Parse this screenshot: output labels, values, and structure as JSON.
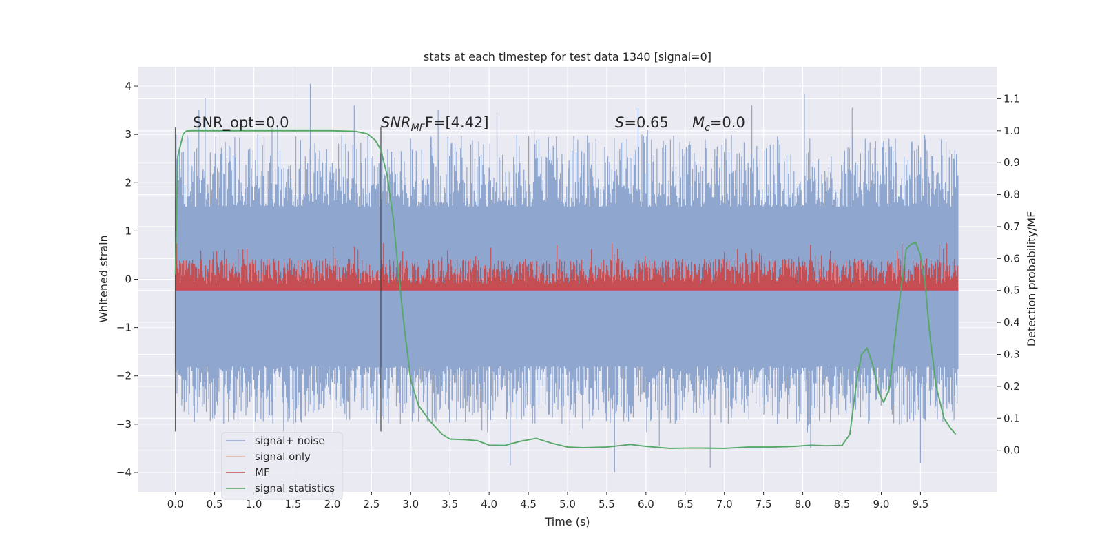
{
  "chart_data": {
    "type": "line",
    "title": "stats at each timestep for test data 1340 [signal=0]",
    "xlabel": "Time (s)",
    "ylabel_left": "Whitened strain",
    "ylabel_right": "Detection probability/MF",
    "xlim": [
      -0.48,
      10.48
    ],
    "ylim_left": [
      -4.4,
      4.4
    ],
    "ylim_right": [
      -0.13,
      1.2
    ],
    "x_ticks": [
      0.0,
      0.5,
      1.0,
      1.5,
      2.0,
      2.5,
      3.0,
      3.5,
      4.0,
      4.5,
      5.0,
      5.5,
      6.0,
      6.5,
      7.0,
      7.5,
      8.0,
      8.5,
      9.0,
      9.5
    ],
    "x_tick_labels": [
      "0.0",
      "0.5",
      "1.0",
      "1.5",
      "2.0",
      "2.5",
      "3.0",
      "3.5",
      "4.0",
      "4.5",
      "5.0",
      "5.5",
      "6.0",
      "6.5",
      "7.0",
      "7.5",
      "8.0",
      "8.5",
      "9.0",
      "9.5"
    ],
    "y_left_ticks": [
      -4,
      -3,
      -2,
      -1,
      0,
      1,
      2,
      3,
      4
    ],
    "y_left_tick_labels": [
      "−4",
      "−3",
      "−2",
      "−1",
      "0",
      "1",
      "2",
      "3",
      "4"
    ],
    "y_right_ticks": [
      0.0,
      0.1,
      0.2,
      0.3,
      0.4,
      0.5,
      0.6,
      0.7,
      0.8,
      0.9,
      1.0,
      1.1
    ],
    "y_right_tick_labels": [
      "0.0",
      "0.1",
      "0.2",
      "0.3",
      "0.4",
      "0.5",
      "0.6",
      "0.7",
      "0.8",
      "0.9",
      "1.0",
      "1.1"
    ],
    "annotations": {
      "snr_opt": "SNR_opt=0.0",
      "snr_mf_main": "SNR",
      "snr_mf_sub": "MF",
      "snr_mf_rest": "F=[4.42]",
      "s_main": "S",
      "s_rest": "=0.65",
      "mc_main": "M",
      "mc_sub": "c",
      "mc_rest": "=0.0"
    },
    "vlines": [
      0.0,
      2.62
    ],
    "vline_range_left": [
      -3.15,
      3.15
    ],
    "legend": {
      "position": "lower-left",
      "entries": [
        {
          "label": "signal+ noise",
          "color": "#8fa6cf"
        },
        {
          "label": "signal only",
          "color": "#e8ae95"
        },
        {
          "label": "MF",
          "color": "#c44e52"
        },
        {
          "label": "signal statistics",
          "color": "#55a868"
        }
      ]
    },
    "series": [
      {
        "name": "signal+ noise",
        "axis": "left",
        "color": "#8fa6cf",
        "x_range": [
          0.0,
          9.98
        ],
        "envelope": {
          "upper_typical": [
            1.5,
            3.0
          ],
          "lower_typical": [
            -1.8,
            -3.0
          ]
        },
        "spikes": [
          {
            "x": 0.3,
            "y": 3.5
          },
          {
            "x": 0.38,
            "y": 3.75
          },
          {
            "x": 1.72,
            "y": 4.05
          },
          {
            "x": 2.28,
            "y": 3.6
          },
          {
            "x": 3.35,
            "y": 3.5
          },
          {
            "x": 4.1,
            "y": 3.45
          },
          {
            "x": 5.9,
            "y": 3.55
          },
          {
            "x": 7.35,
            "y": 3.6
          },
          {
            "x": 8.02,
            "y": 3.85
          },
          {
            "x": 8.63,
            "y": 3.55
          },
          {
            "x": 4.27,
            "y": -3.85
          },
          {
            "x": 5.6,
            "y": -4.0
          },
          {
            "x": 6.82,
            "y": -3.9
          },
          {
            "x": 9.5,
            "y": -3.8
          },
          {
            "x": 1.38,
            "y": -3.15
          },
          {
            "x": 6.17,
            "y": -3.45
          },
          {
            "x": 8.1,
            "y": -3.5
          }
        ]
      },
      {
        "name": "signal only",
        "axis": "left",
        "color": "#e8ae95",
        "x": [
          0.0,
          9.98
        ],
        "y": [
          0.0,
          0.0
        ]
      },
      {
        "name": "MF",
        "axis": "right",
        "color": "#c44e52",
        "x_range": [
          0.0,
          9.98
        ],
        "baseline": 0.5,
        "typical_range": [
          0.52,
          0.6
        ],
        "max": 0.65
      },
      {
        "name": "signal statistics",
        "axis": "right",
        "color": "#55a868",
        "x": [
          0.0,
          0.03,
          0.06,
          0.1,
          0.14,
          0.2,
          0.3,
          0.5,
          1.0,
          1.5,
          2.0,
          2.3,
          2.45,
          2.55,
          2.62,
          2.7,
          2.78,
          2.85,
          2.92,
          3.0,
          3.1,
          3.25,
          3.4,
          3.5,
          3.7,
          3.85,
          4.0,
          4.2,
          4.4,
          4.6,
          4.8,
          5.0,
          5.2,
          5.5,
          5.8,
          6.0,
          6.3,
          6.6,
          7.0,
          7.3,
          7.6,
          7.9,
          8.1,
          8.3,
          8.5,
          8.6,
          8.7,
          8.75,
          8.82,
          8.9,
          8.97,
          9.03,
          9.1,
          9.18,
          9.25,
          9.32,
          9.38,
          9.44,
          9.5,
          9.56,
          9.62,
          9.7,
          9.8,
          9.88,
          9.95
        ],
        "y": [
          0.55,
          0.92,
          0.95,
          0.99,
          0.999,
          1.0,
          1.0,
          1.0,
          1.0,
          1.0,
          1.0,
          0.998,
          0.99,
          0.97,
          0.94,
          0.86,
          0.72,
          0.54,
          0.38,
          0.22,
          0.14,
          0.09,
          0.05,
          0.035,
          0.033,
          0.03,
          0.016,
          0.015,
          0.028,
          0.037,
          0.022,
          0.01,
          0.008,
          0.01,
          0.018,
          0.012,
          0.006,
          0.007,
          0.006,
          0.01,
          0.01,
          0.012,
          0.016,
          0.014,
          0.015,
          0.05,
          0.24,
          0.3,
          0.32,
          0.26,
          0.18,
          0.15,
          0.19,
          0.36,
          0.5,
          0.63,
          0.645,
          0.65,
          0.61,
          0.52,
          0.36,
          0.2,
          0.1,
          0.07,
          0.05
        ]
      }
    ]
  }
}
